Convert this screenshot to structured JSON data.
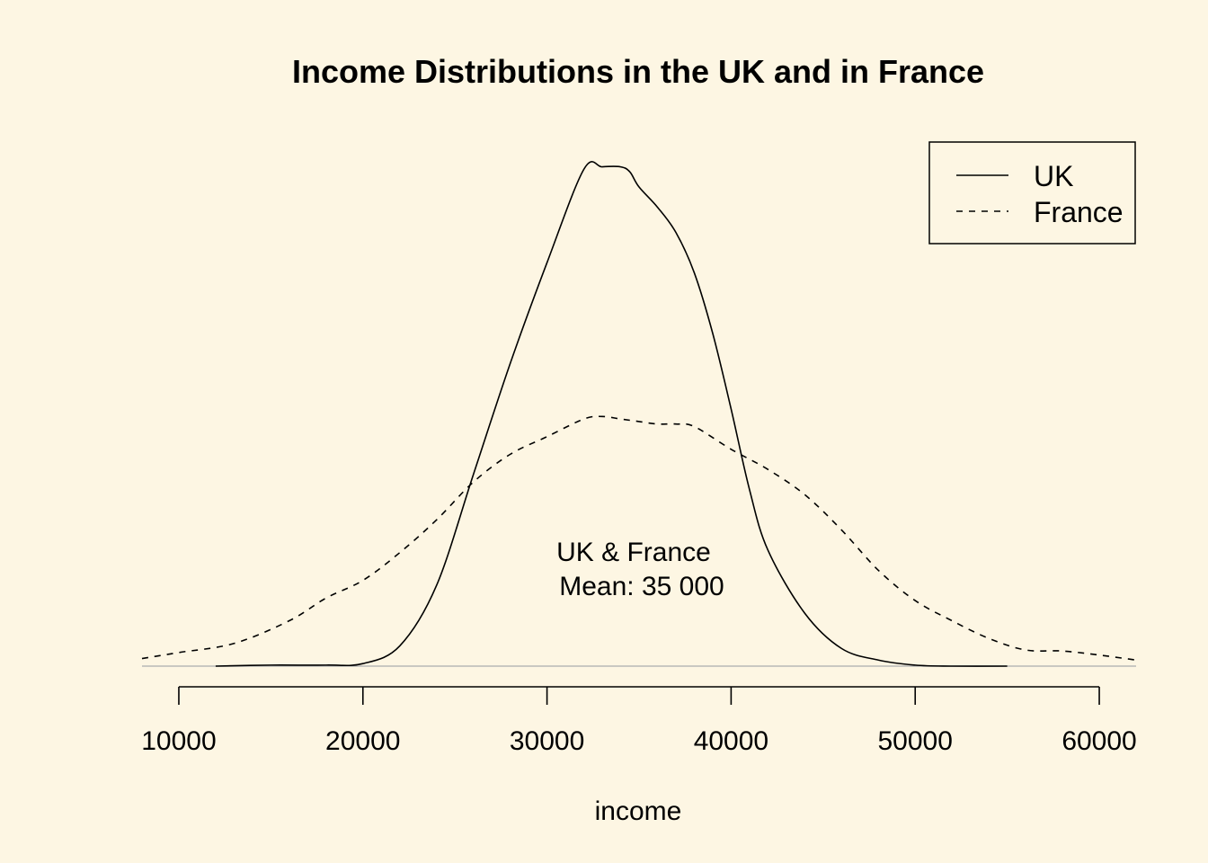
{
  "chart_data": {
    "type": "line",
    "title": "Income Distributions in the UK and in France",
    "xlabel": "income",
    "ylabel": "",
    "xlim": [
      8000,
      62000
    ],
    "ylim": [
      0,
      1
    ],
    "x_ticks": [
      10000,
      20000,
      30000,
      40000,
      50000,
      60000
    ],
    "x_tick_labels": [
      "10000",
      "20000",
      "30000",
      "40000",
      "50000",
      "60000"
    ],
    "background": "#fdf6e3",
    "legend": {
      "position": "top-right",
      "entries": [
        {
          "label": "UK",
          "style": "solid"
        },
        {
          "label": "France",
          "style": "dashed"
        }
      ]
    },
    "annotation": {
      "line1": "UK & France",
      "line2": "Mean: 35 000",
      "x": 35000,
      "y": 0.18
    },
    "series": [
      {
        "name": "UK",
        "style": "solid",
        "color": "#000000",
        "x": [
          12000,
          15000,
          18000,
          20000,
          22000,
          24000,
          26000,
          28000,
          30000,
          32000,
          33000,
          34000,
          34500,
          35000,
          36000,
          37000,
          38000,
          39000,
          40000,
          41000,
          42000,
          44000,
          46000,
          48000,
          50000,
          52000,
          55000
        ],
        "y": [
          0.0,
          0.002,
          0.002,
          0.005,
          0.04,
          0.16,
          0.38,
          0.6,
          0.8,
          0.985,
          0.99,
          0.99,
          0.98,
          0.95,
          0.91,
          0.86,
          0.78,
          0.66,
          0.51,
          0.35,
          0.23,
          0.105,
          0.035,
          0.012,
          0.002,
          0.0,
          0.0
        ]
      },
      {
        "name": "France",
        "style": "dashed",
        "color": "#000000",
        "x": [
          8000,
          10000,
          13000,
          16000,
          18000,
          20000,
          22000,
          24000,
          26000,
          28000,
          30000,
          32000,
          33000,
          34000,
          35000,
          36000,
          37000,
          38000,
          40000,
          42000,
          44000,
          46000,
          48000,
          50000,
          52000,
          54000,
          56000,
          58000,
          60000,
          62000
        ],
        "y": [
          0.015,
          0.027,
          0.045,
          0.09,
          0.135,
          0.17,
          0.225,
          0.29,
          0.365,
          0.42,
          0.455,
          0.49,
          0.495,
          0.49,
          0.485,
          0.48,
          0.48,
          0.475,
          0.43,
          0.39,
          0.34,
          0.27,
          0.19,
          0.13,
          0.09,
          0.055,
          0.032,
          0.03,
          0.022,
          0.012
        ]
      }
    ]
  }
}
